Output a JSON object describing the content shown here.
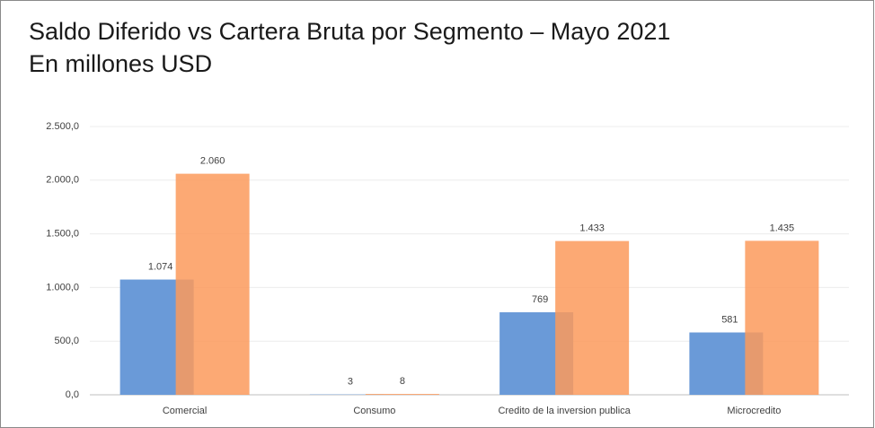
{
  "chart_data": {
    "type": "bar",
    "title": [
      "Saldo Diferido vs Cartera Bruta por Segmento – Mayo 2021",
      "En millones USD"
    ],
    "categories": [
      "Comercial",
      "Consumo",
      "Credito de la inversion publica",
      "Microcredito"
    ],
    "series": [
      {
        "color": "#6a9ad8",
        "values": [
          1074,
          3,
          769,
          581
        ],
        "value_labels": [
          "1.074",
          "3",
          "769",
          "581"
        ]
      },
      {
        "color": "#fb9a5c",
        "values": [
          2060,
          8,
          1433,
          1435
        ],
        "value_labels": [
          "2.060",
          "8",
          "1.433",
          "1.435"
        ]
      }
    ],
    "ylim": [
      0,
      2500
    ],
    "yticks": [
      {
        "value": 0,
        "label": "0,0"
      },
      {
        "value": 500,
        "label": "500,0"
      },
      {
        "value": 1000,
        "label": "1.000,0"
      },
      {
        "value": 1500,
        "label": "1.500,0"
      },
      {
        "value": 2000,
        "label": "2.000,0"
      },
      {
        "value": 2500,
        "label": "2.500,0"
      }
    ],
    "grid": true
  }
}
